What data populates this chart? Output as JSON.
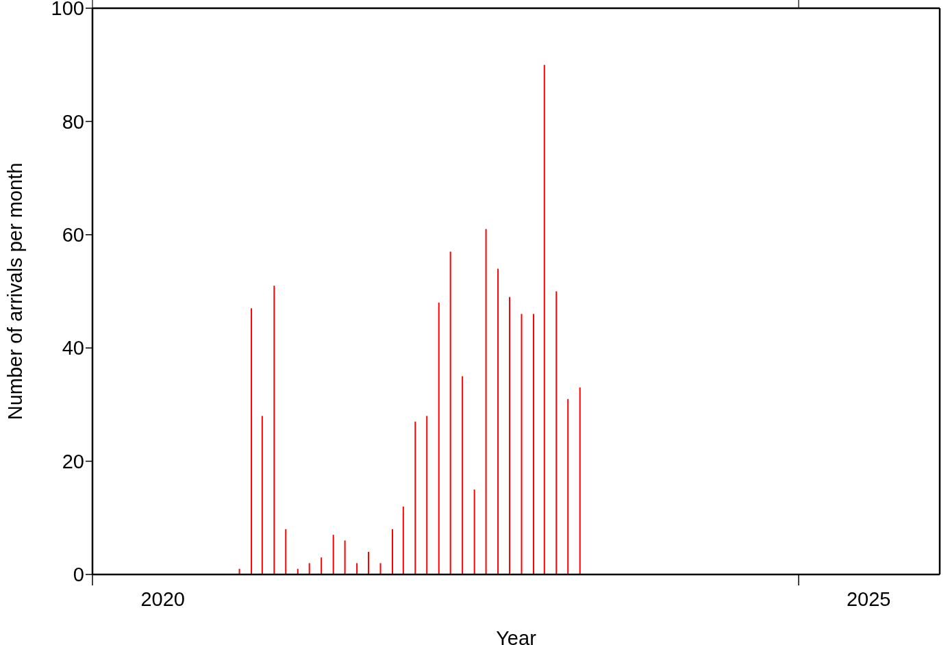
{
  "chart_data": {
    "type": "bar",
    "xlabel": "Year",
    "ylabel": "Number of arrivals per month",
    "x": [
      "2021-01-15",
      "2021-02-15",
      "2021-03-15",
      "2021-04-15",
      "2021-05-15",
      "2021-06-15",
      "2021-07-15",
      "2021-08-15",
      "2021-09-15",
      "2021-10-15",
      "2021-11-15",
      "2021-12-15",
      "2022-01-15",
      "2022-02-15",
      "2022-03-15",
      "2022-04-15",
      "2022-05-15",
      "2022-06-15",
      "2022-07-15",
      "2022-08-15",
      "2022-09-15",
      "2022-10-15",
      "2022-11-15",
      "2022-12-15",
      "2023-01-15",
      "2023-02-15",
      "2023-03-15",
      "2023-04-15",
      "2023-05-15",
      "2023-06-15"
    ],
    "values": [
      1,
      47,
      28,
      51,
      8,
      1,
      2,
      3,
      7,
      6,
      2,
      4,
      2,
      8,
      12,
      27,
      28,
      48,
      57,
      35,
      15,
      61,
      54,
      49,
      46,
      46,
      90,
      50,
      31,
      33
    ],
    "color": "#ff0000",
    "xlim": [
      "2020-01-01",
      "2026-01-01"
    ],
    "xticks": [
      {
        "value": "2020-01-01",
        "label": null
      },
      {
        "value": "2020-07-01",
        "label": "2020"
      },
      {
        "value": "2025-01-01",
        "label": null
      },
      {
        "value": "2025-07-01",
        "label": "2025"
      }
    ],
    "ylim": [
      0,
      100
    ],
    "yticks": [
      0,
      20,
      40,
      60,
      80,
      100
    ],
    "grid": false,
    "legend": false
  }
}
